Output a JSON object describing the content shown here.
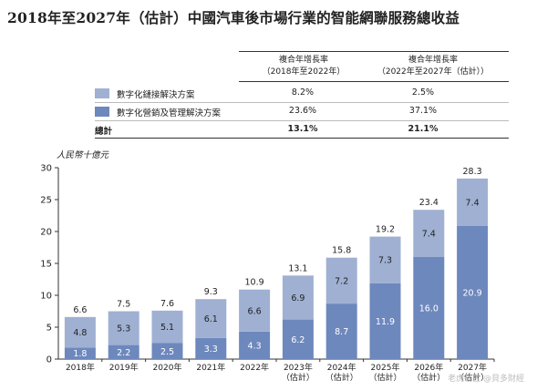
{
  "title": "2018年至2027年（估計）中國汽車後市場行業的智能網聯服務總收益",
  "table": {
    "headers": [
      "複合年增長率\n（2018年至2022年）",
      "複合年增長率\n（2022年至2027年（估計））"
    ],
    "rows": [
      {
        "label": "數字化鏈接解決方案",
        "cagr1": "8.2%",
        "cagr2": "2.5%",
        "color": "#9fb0d2"
      },
      {
        "label": "數字化營銷及管理解決方案",
        "cagr1": "23.6%",
        "cagr2": "37.1%",
        "color": "#6d88bd"
      },
      {
        "label": "總計",
        "cagr1": "13.1%",
        "cagr2": "21.1%"
      }
    ]
  },
  "chart_data": {
    "type": "bar",
    "stacked": true,
    "ylabel": "人民幣十億元",
    "ylim": [
      0,
      30
    ],
    "yticks": [
      0,
      5,
      10,
      15,
      20,
      25,
      30
    ],
    "categories": [
      "2018年",
      "2019年",
      "2020年",
      "2021年",
      "2022年",
      "2023年\n（估計）",
      "2024年\n（估計）",
      "2025年\n（估計）",
      "2026年\n（估計）",
      "2027年\n（估計）"
    ],
    "series": [
      {
        "name": "數字化營銷及管理解決方案",
        "color": "#6d88bd",
        "values": [
          1.8,
          2.2,
          2.5,
          3.3,
          4.3,
          6.2,
          8.7,
          11.9,
          16.0,
          20.9
        ]
      },
      {
        "name": "數字化鏈接解決方案",
        "color": "#9fb0d2",
        "values": [
          4.8,
          5.3,
          5.1,
          6.1,
          6.6,
          6.9,
          7.2,
          7.3,
          7.4,
          7.4
        ]
      }
    ],
    "totals": [
      6.6,
      7.5,
      7.6,
      9.3,
      10.9,
      13.1,
      15.8,
      19.2,
      23.4,
      28.3
    ]
  },
  "watermark": "老虎社区 @貝多財經"
}
